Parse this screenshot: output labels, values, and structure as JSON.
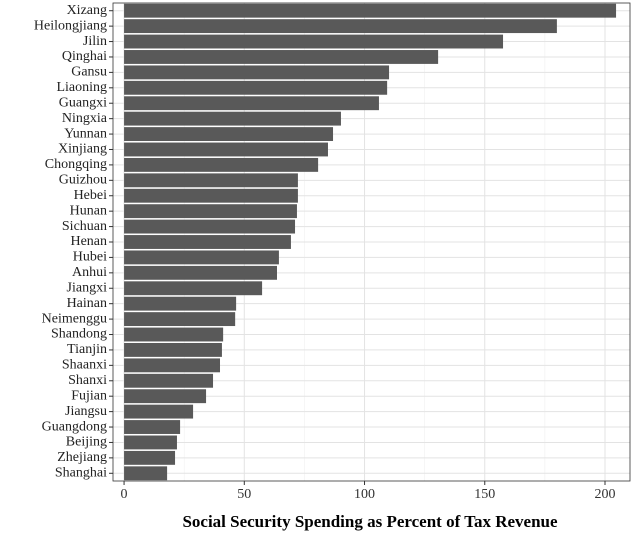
{
  "chart_data": {
    "type": "hbar",
    "x_label": "Social Security Spending as Percent of Tax Revenue",
    "categories": [
      "Xizang",
      "Heilongjiang",
      "Jilin",
      "Qinghai",
      "Gansu",
      "Liaoning",
      "Guangxi",
      "Ningxia",
      "Yunnan",
      "Xinjiang",
      "Chongqing",
      "Guizhou",
      "Hebei",
      "Hunan",
      "Sichuan",
      "Henan",
      "Hubei",
      "Anhui",
      "Jiangxi",
      "Hainan",
      "Neimenggu",
      "Shandong",
      "Tianjin",
      "Shaanxi",
      "Shanxi",
      "Fujian",
      "Jiangsu",
      "Guangdong",
      "Beijing",
      "Zhejiang",
      "Shanghai"
    ],
    "values": [
      204.6,
      180,
      157.6,
      130.6,
      110.2,
      109.4,
      106,
      90.2,
      86.9,
      84.8,
      80.7,
      72.3,
      72.3,
      71.9,
      71.1,
      69.4,
      64.4,
      63.6,
      57.4,
      46.6,
      46.2,
      41.2,
      40.7,
      39.9,
      37,
      34.1,
      28.7,
      23.3,
      22,
      21.2,
      17.9
    ],
    "color": "#595959",
    "xlim": [
      -4.6,
      210.4
    ],
    "xticks": [
      0,
      50,
      100,
      150,
      200
    ],
    "x_minor_ticks": [
      25,
      75,
      125,
      175
    ],
    "grid": true
  }
}
